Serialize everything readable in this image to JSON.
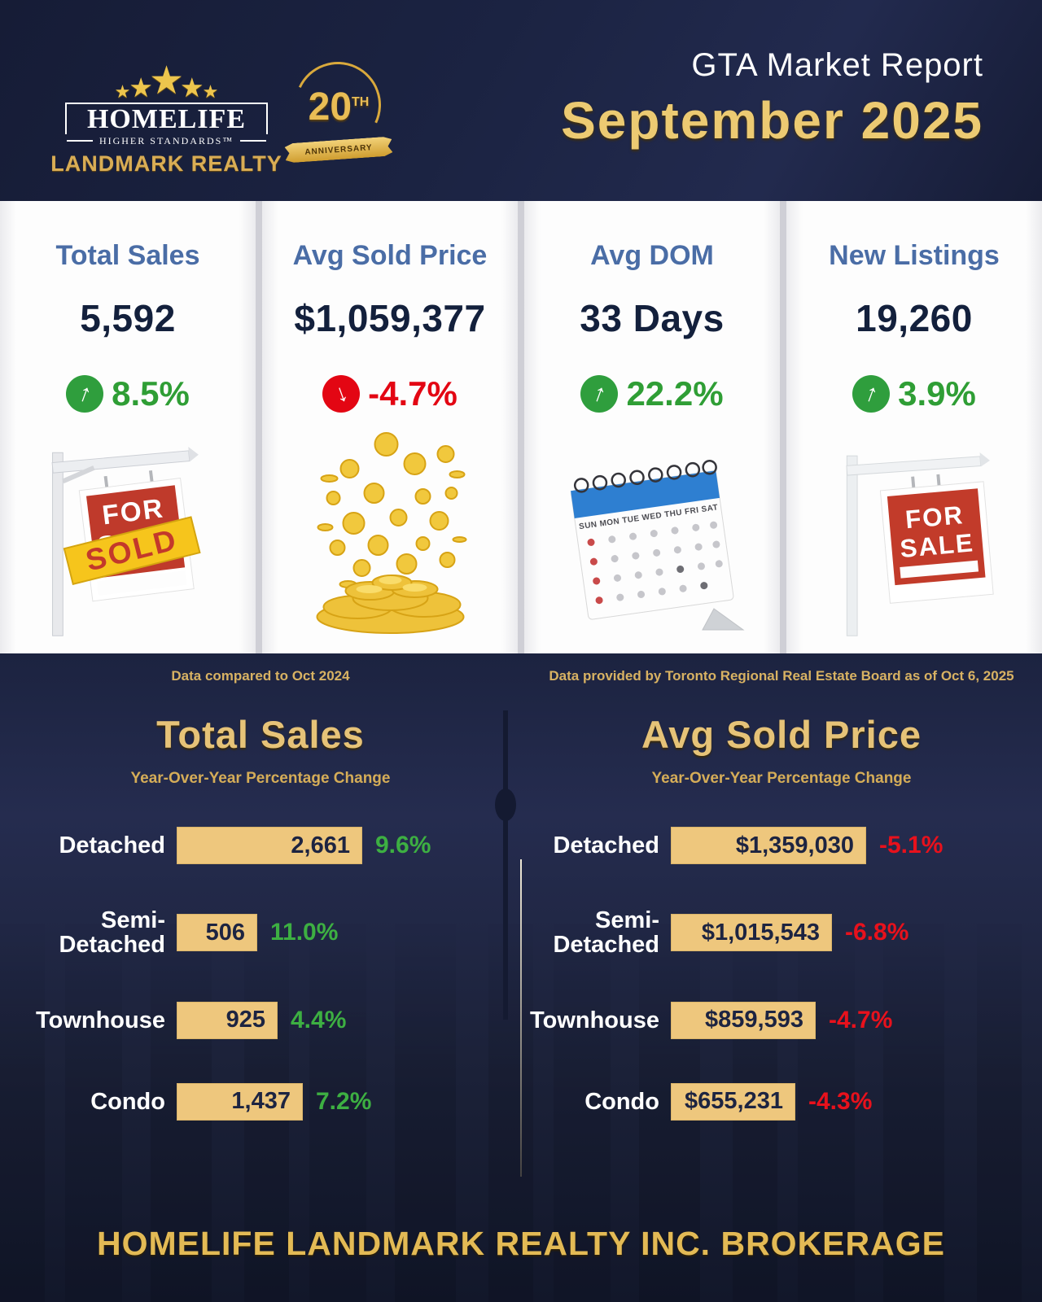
{
  "header": {
    "logo": {
      "star": "★",
      "brand": "HOMELIFE",
      "tagline": "HIGHER STANDARDS™",
      "sub_brand": "LANDMARK REALTY"
    },
    "anniversary": {
      "number": "20",
      "suffix": "TH",
      "label": "ANNIVERSARY"
    },
    "report_title": "GTA Market Report",
    "report_month": "September 2025"
  },
  "stat_cards": [
    {
      "title": "Total Sales",
      "value": "5,592",
      "change": "8.5%",
      "direction": "up",
      "icon": "sold-sign"
    },
    {
      "title": "Avg Sold Price",
      "value": "$1,059,377",
      "change": "-4.7%",
      "direction": "down",
      "icon": "gold-coins"
    },
    {
      "title": "Avg DOM",
      "value": "33 Days",
      "change": "22.2%",
      "direction": "up",
      "icon": "calendar"
    },
    {
      "title": "New Listings",
      "value": "19,260",
      "change": "3.9%",
      "direction": "up",
      "icon": "for-sale-sign"
    }
  ],
  "icons": {
    "arrow_up": "↑",
    "arrow_down": "↓",
    "sold_sign": {
      "line1": "FOR",
      "line2": "SALE",
      "badge": "SOLD"
    },
    "for_sale_sign": {
      "line1": "FOR",
      "line2": "SALE"
    },
    "calendar_days": "SUN MON TUE WED THU FRI SAT"
  },
  "notes": {
    "left": "Data compared to Oct 2024",
    "right": "Data provided by Toronto Regional Real Estate Board as of Oct 6, 2025"
  },
  "chart_data": [
    {
      "type": "bar",
      "orientation": "horizontal",
      "title": "Total Sales",
      "subtitle": "Year-Over-Year Percentage Change",
      "categories": [
        "Detached",
        "Semi-Detached",
        "Townhouse",
        "Condo"
      ],
      "display_labels": [
        "Detached",
        "Semi-\nDetached",
        "Townhouse",
        "Condo"
      ],
      "values": [
        2661,
        506,
        925,
        1437
      ],
      "value_labels": [
        "2,661",
        "506",
        "925",
        "1,437"
      ],
      "changes": [
        "9.6%",
        "11.0%",
        "4.4%",
        "7.2%"
      ],
      "trend": "up",
      "bar_color": "#eec77d",
      "change_color": "#3daf42"
    },
    {
      "type": "bar",
      "orientation": "horizontal",
      "title": "Avg Sold Price",
      "subtitle": "Year-Over-Year Percentage Change",
      "categories": [
        "Detached",
        "Semi-Detached",
        "Townhouse",
        "Condo"
      ],
      "display_labels": [
        "Detached",
        "Semi-\nDetached",
        "Townhouse",
        "Condo"
      ],
      "values": [
        1359030,
        1015543,
        859593,
        655231
      ],
      "value_labels": [
        "$1,359,030",
        "$1,015,543",
        "$859,593",
        "$655,231"
      ],
      "changes": [
        "-5.1%",
        "-6.8%",
        "-4.7%",
        "-4.3%"
      ],
      "trend": "down",
      "bar_color": "#eec77d",
      "change_color": "#e8111c"
    }
  ],
  "footer": {
    "text": "HOMELIFE LANDMARK REALTY INC. BROKERAGE"
  },
  "colors": {
    "background_navy": "#1b2240",
    "card_bg": "#fdfdfd",
    "card_title_blue": "#4a6da6",
    "value_navy": "#13203c",
    "green": "#2f9e3d",
    "red": "#e30613",
    "gold": "#e6c378",
    "bar_fill": "#eec77d"
  }
}
